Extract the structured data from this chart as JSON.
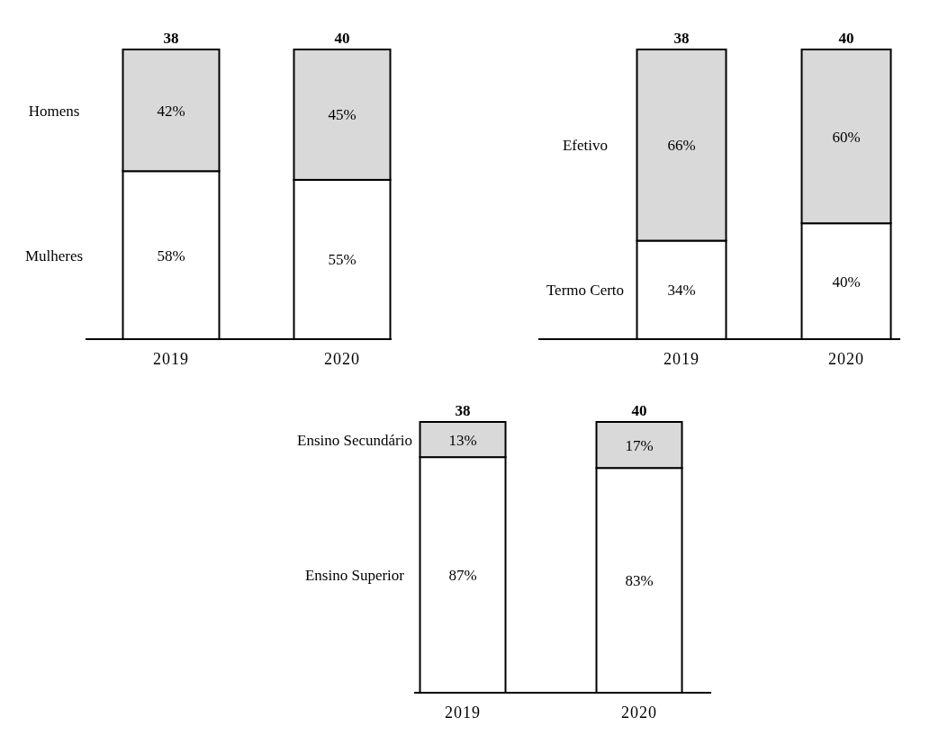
{
  "chart_data": [
    {
      "type": "bar",
      "stacked": true,
      "categories": [
        "2019",
        "2020"
      ],
      "ylim": [
        0,
        100
      ],
      "tick_labels": "x",
      "annotations": [
        {
          "text": "38",
          "x": "2019",
          "y": 100
        },
        {
          "text": "40",
          "x": "2020",
          "y": 100
        }
      ],
      "series": [
        {
          "name": "Mulheres",
          "color": "#ffffff",
          "values": [
            58,
            55
          ],
          "value_labels": [
            "58%",
            "55%"
          ]
        },
        {
          "name": "Homens",
          "color": "#d9d9d9",
          "values": [
            42,
            45
          ],
          "value_labels": [
            "42%",
            "45%"
          ]
        }
      ]
    },
    {
      "type": "bar",
      "stacked": true,
      "categories": [
        "2019",
        "2020"
      ],
      "ylim": [
        0,
        100
      ],
      "tick_labels": "x",
      "annotations": [
        {
          "text": "38",
          "x": "2019",
          "y": 100
        },
        {
          "text": "40",
          "x": "2020",
          "y": 100
        }
      ],
      "series": [
        {
          "name": "Termo Certo",
          "color": "#ffffff",
          "values": [
            34,
            40
          ],
          "value_labels": [
            "34%",
            "40%"
          ]
        },
        {
          "name": "Efetivo",
          "color": "#d9d9d9",
          "values": [
            66,
            60
          ],
          "value_labels": [
            "66%",
            "60%"
          ]
        }
      ]
    },
    {
      "type": "bar",
      "stacked": true,
      "categories": [
        "2019",
        "2020"
      ],
      "ylim": [
        0,
        100
      ],
      "tick_labels": "x",
      "annotations": [
        {
          "text": "38",
          "x": "2019",
          "y": 100
        },
        {
          "text": "40",
          "x": "2020",
          "y": 100
        }
      ],
      "series": [
        {
          "name": "Ensino Superior",
          "color": "#ffffff",
          "values": [
            87,
            83
          ],
          "value_labels": [
            "87%",
            "83%"
          ]
        },
        {
          "name": "Ensino Secundário",
          "color": "#d9d9d9",
          "values": [
            13,
            17
          ],
          "value_labels": [
            "13%",
            "17%"
          ]
        }
      ]
    }
  ]
}
